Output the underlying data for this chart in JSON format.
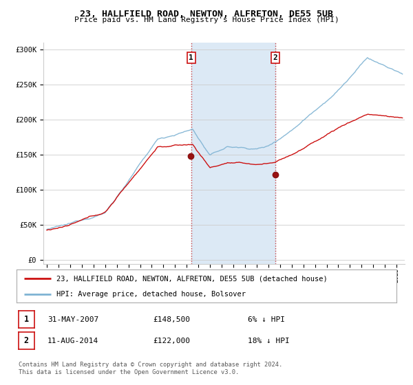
{
  "title": "23, HALLFIELD ROAD, NEWTON, ALFRETON, DE55 5UB",
  "subtitle": "Price paid vs. HM Land Registry's House Price Index (HPI)",
  "ylabel_ticks": [
    "£0",
    "£50K",
    "£100K",
    "£150K",
    "£200K",
    "£250K",
    "£300K"
  ],
  "ytick_values": [
    0,
    50000,
    100000,
    150000,
    200000,
    250000,
    300000
  ],
  "ylim": [
    -5000,
    310000
  ],
  "sale1_year": 2007.375,
  "sale1_price": 148500,
  "sale2_year": 2014.583,
  "sale2_price": 122000,
  "hpi_color": "#7fb3d3",
  "price_color": "#cc1111",
  "shade_color": "#dce9f5",
  "vline_color": "#cc4444",
  "legend_house": "23, HALLFIELD ROAD, NEWTON, ALFRETON, DE55 5UB (detached house)",
  "legend_hpi": "HPI: Average price, detached house, Bolsover",
  "footer1": "Contains HM Land Registry data © Crown copyright and database right 2024.",
  "footer2": "This data is licensed under the Open Government Licence v3.0.",
  "table_row1": [
    "1",
    "31-MAY-2007",
    "£148,500",
    "6% ↓ HPI"
  ],
  "table_row2": [
    "2",
    "11-AUG-2014",
    "£122,000",
    "18% ↓ HPI"
  ],
  "background_color": "#ffffff",
  "grid_color": "#cccccc",
  "box_border_color": "#cc1111",
  "xstart": 1995,
  "xend": 2025
}
